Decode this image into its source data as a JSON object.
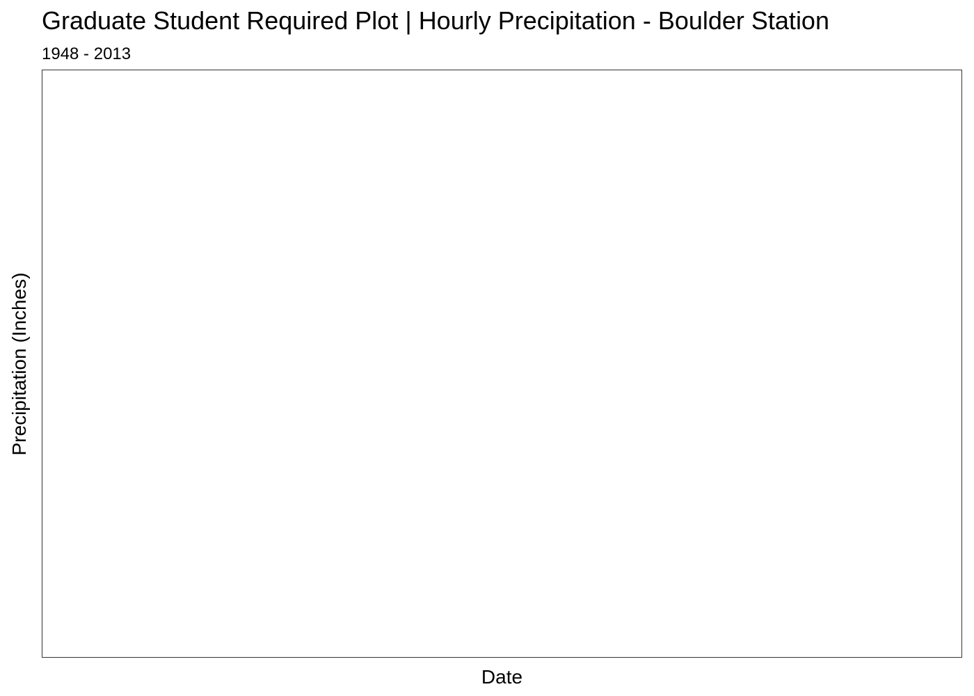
{
  "chart_data": {
    "type": "line",
    "title": "Graduate Student Required Plot | Hourly Precipitation - Boulder Station",
    "subtitle": "1948 - 2013",
    "xlabel": "Date",
    "ylabel": "Precipitation (Inches)",
    "grid": false,
    "series": []
  }
}
